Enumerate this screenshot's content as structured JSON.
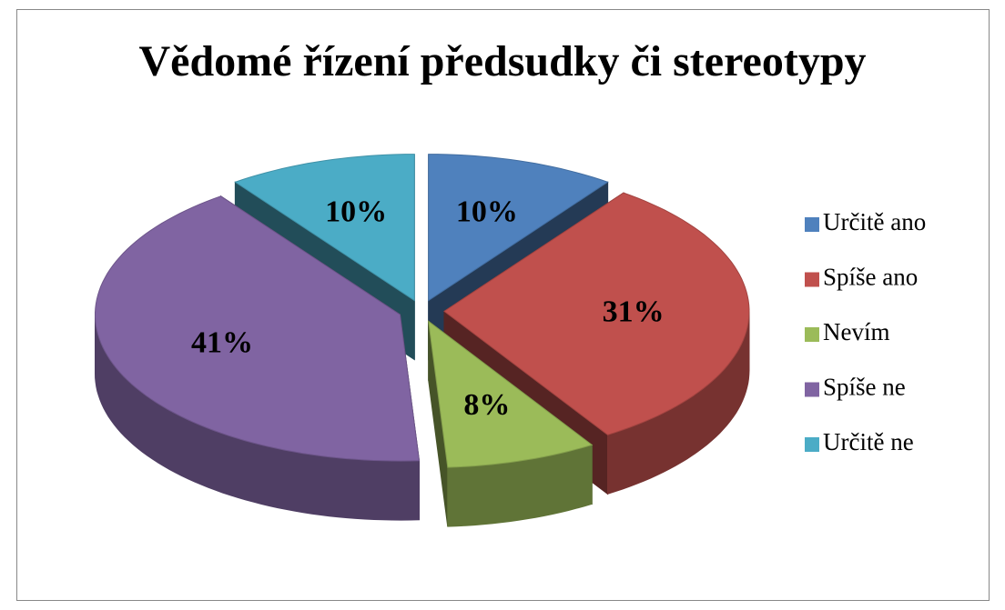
{
  "chart_data": {
    "type": "pie3d",
    "title": "Vědomé řízení předsudky či stereotypy",
    "categories": [
      "Určitě ano",
      "Spíše ano",
      "Nevím",
      "Spíše ne",
      "Určitě ne"
    ],
    "values": [
      10,
      31,
      8,
      41,
      10
    ],
    "value_labels": [
      "10%",
      "31%",
      "8%",
      "41%",
      "10%"
    ],
    "colors": [
      "#4f81bd",
      "#c0504d",
      "#9bbb59",
      "#8064a2",
      "#4bacc6"
    ],
    "legend": "right"
  }
}
